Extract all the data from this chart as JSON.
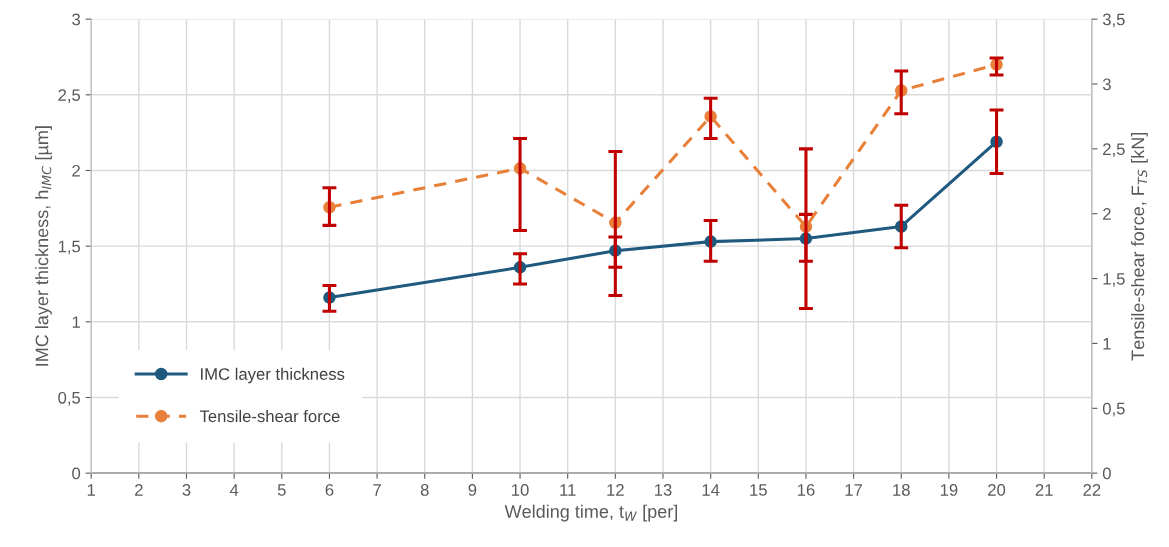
{
  "chart_data": {
    "type": "line",
    "xlabel": "Welding time, t$_{W}$ [per]",
    "ylabel": "IMC layer thickness, h$_{IMC}$ [µm]",
    "y2label": "Tensile-shear force, F$_{TS}$ [kN]",
    "x": [
      6,
      10,
      12,
      14,
      16,
      18,
      20
    ],
    "xlim": [
      1,
      22
    ],
    "xticks": [
      1,
      2,
      3,
      4,
      5,
      6,
      7,
      8,
      9,
      10,
      11,
      12,
      13,
      14,
      15,
      16,
      17,
      18,
      19,
      20,
      21,
      22
    ],
    "ylim": [
      0,
      3
    ],
    "yticks": [
      0,
      {
        "value": 0.5,
        "label": "0,5"
      },
      1,
      {
        "value": 1.5,
        "label": "1,5"
      },
      2,
      {
        "value": 2.5,
        "label": "2,5"
      },
      3
    ],
    "y2lim": [
      0,
      3.5
    ],
    "y2ticks": [
      0,
      {
        "value": 0.5,
        "label": "0,5"
      },
      1,
      {
        "value": 1.5,
        "label": "1,5"
      },
      2,
      {
        "value": 2.5,
        "label": "2,5"
      },
      3,
      {
        "value": 3.5,
        "label": "3,5"
      }
    ],
    "grid": true,
    "legend": "bottom left",
    "marker": "circle",
    "series": [
      {
        "name": "IMC layer thickness",
        "color": "#1f5a7e",
        "line_style": "solid",
        "values": [
          1.16,
          1.36,
          1.47,
          1.53,
          1.55,
          1.63,
          2.19
        ],
        "errors": [
          [
            1.07,
            1.24
          ],
          [
            1.25,
            1.45
          ],
          [
            1.36,
            1.56
          ],
          [
            1.4,
            1.67
          ],
          [
            1.4,
            1.71
          ],
          [
            1.49,
            1.77
          ],
          [
            1.98,
            2.4
          ]
        ]
      },
      {
        "name": "Tensile-shear force",
        "color": "#e8803a",
        "line_style": "dashed",
        "axis": "y2",
        "values": [
          2.05,
          2.35,
          1.93,
          2.75,
          1.9,
          2.95,
          3.15
        ],
        "errors": [
          [
            1.91,
            2.2
          ],
          [
            1.87,
            2.58
          ],
          [
            1.37,
            2.48
          ],
          [
            2.58,
            2.89
          ],
          [
            1.27,
            2.5
          ],
          [
            2.77,
            3.1
          ],
          [
            3.07,
            3.2
          ]
        ]
      }
    ]
  }
}
